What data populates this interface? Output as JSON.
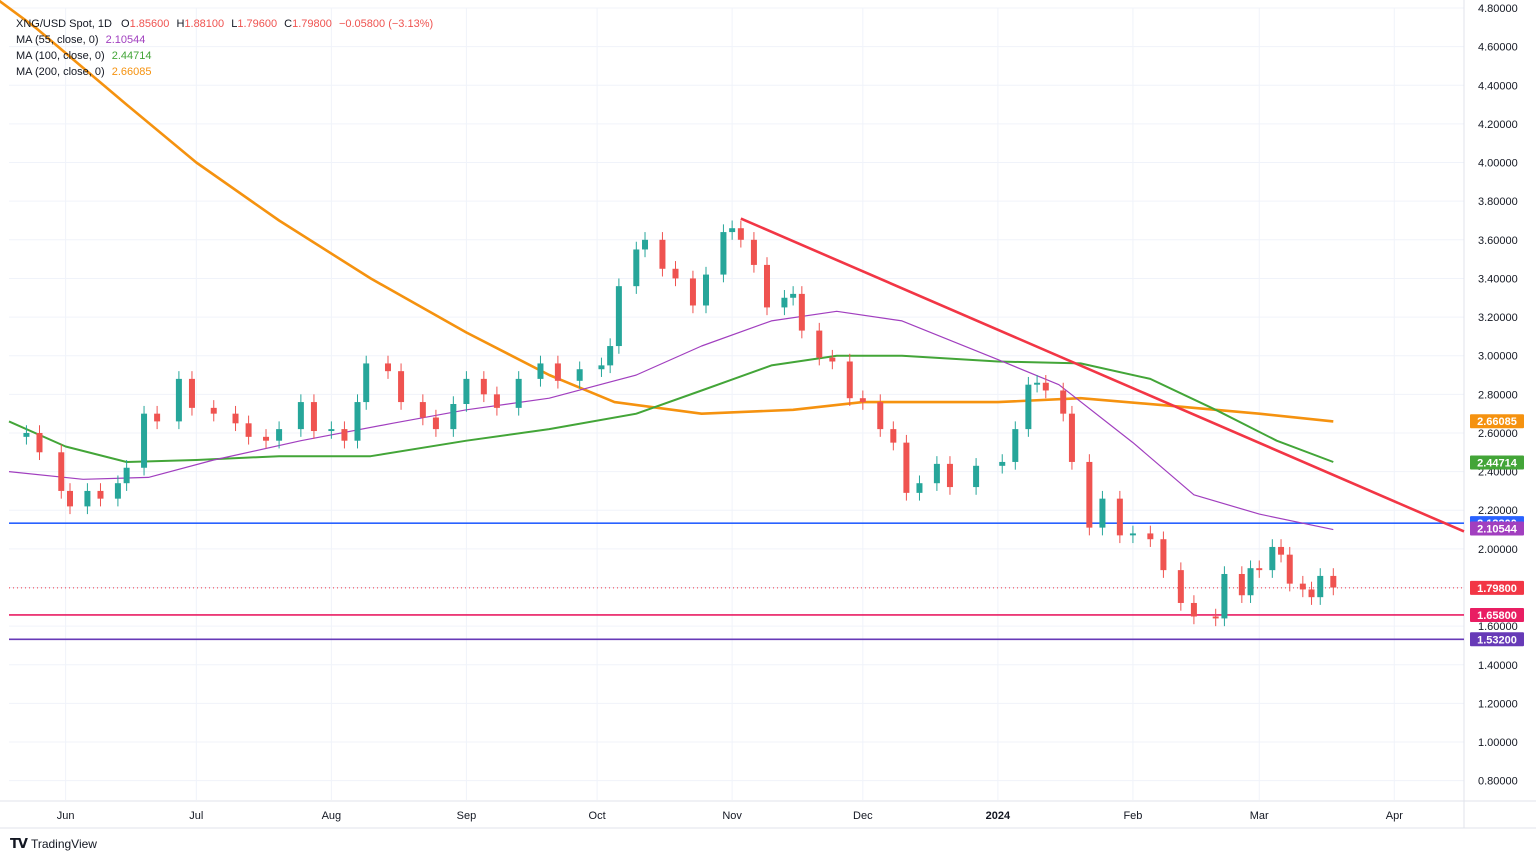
{
  "legend": {
    "symbol": "XNG/USD Spot, 1D",
    "ohlc": {
      "o_label": "O",
      "o": "1.85600",
      "h_label": "H",
      "h": "1.88100",
      "l_label": "L",
      "l": "1.79600",
      "c_label": "C",
      "c": "1.79800",
      "change": "−0.05800 (−3.13%)"
    },
    "ma55": {
      "label": "MA (55, close, 0)",
      "value": "2.10544",
      "color": "#a13fbf"
    },
    "ma100": {
      "label": "MA (100, close, 0)",
      "value": "2.44714",
      "color": "#43a538"
    },
    "ma200": {
      "label": "MA (200, close, 0)",
      "value": "2.66085",
      "color": "#f5920f"
    }
  },
  "brand": {
    "name": "TradingView"
  },
  "colors": {
    "up": "#26a69a",
    "down": "#ef5350",
    "grid": "#f0f3fa",
    "axis_text": "#131722",
    "trendline": "#f23645",
    "support_blue": "#2962ff",
    "support_red": "#e91e63",
    "support_purple": "#673ab7",
    "last_price": "#f23645"
  },
  "chart_data": {
    "type": "candlestick",
    "title": "XNG/USD Spot, 1D",
    "ylim": [
      0.7,
      4.8
    ],
    "y_ticks": [
      "0.80000",
      "1.00000",
      "1.20000",
      "1.40000",
      "1.60000",
      "1.80000",
      "2.00000",
      "2.20000",
      "2.40000",
      "2.60000",
      "2.80000",
      "3.00000",
      "3.20000",
      "3.40000",
      "3.60000",
      "3.80000",
      "4.00000",
      "4.20000",
      "4.40000",
      "4.60000",
      "4.80000"
    ],
    "x_ticks": [
      {
        "label": "Jun",
        "date": "2023-06-01"
      },
      {
        "label": "Jul",
        "date": "2023-07-01"
      },
      {
        "label": "Aug",
        "date": "2023-08-01"
      },
      {
        "label": "Sep",
        "date": "2023-09-01"
      },
      {
        "label": "Oct",
        "date": "2023-10-01"
      },
      {
        "label": "Nov",
        "date": "2023-11-01"
      },
      {
        "label": "Dec",
        "date": "2023-12-01"
      },
      {
        "label": "2024",
        "date": "2024-01-01",
        "bold": true
      },
      {
        "label": "Feb",
        "date": "2024-02-01"
      },
      {
        "label": "Mar",
        "date": "2024-03-01"
      },
      {
        "label": "Apr",
        "date": "2024-04-01"
      }
    ],
    "x_range": [
      "2023-05-19",
      "2024-04-17"
    ],
    "closes": [
      {
        "date": "2023-05-19",
        "close": 2.58
      },
      {
        "date": "2023-05-23",
        "close": 2.6
      },
      {
        "date": "2023-05-26",
        "close": 2.5
      },
      {
        "date": "2023-05-31",
        "close": 2.3
      },
      {
        "date": "2023-06-02",
        "close": 2.22
      },
      {
        "date": "2023-06-06",
        "close": 2.3
      },
      {
        "date": "2023-06-09",
        "close": 2.26
      },
      {
        "date": "2023-06-13",
        "close": 2.34
      },
      {
        "date": "2023-06-15",
        "close": 2.42
      },
      {
        "date": "2023-06-19",
        "close": 2.7
      },
      {
        "date": "2023-06-22",
        "close": 2.66
      },
      {
        "date": "2023-06-27",
        "close": 2.88
      },
      {
        "date": "2023-06-30",
        "close": 2.73
      },
      {
        "date": "2023-07-05",
        "close": 2.7
      },
      {
        "date": "2023-07-10",
        "close": 2.65
      },
      {
        "date": "2023-07-13",
        "close": 2.58
      },
      {
        "date": "2023-07-17",
        "close": 2.56
      },
      {
        "date": "2023-07-20",
        "close": 2.62
      },
      {
        "date": "2023-07-25",
        "close": 2.76
      },
      {
        "date": "2023-07-28",
        "close": 2.61
      },
      {
        "date": "2023-08-01",
        "close": 2.62
      },
      {
        "date": "2023-08-04",
        "close": 2.56
      },
      {
        "date": "2023-08-07",
        "close": 2.76
      },
      {
        "date": "2023-08-09",
        "close": 2.96
      },
      {
        "date": "2023-08-14",
        "close": 2.92
      },
      {
        "date": "2023-08-17",
        "close": 2.76
      },
      {
        "date": "2023-08-22",
        "close": 2.68
      },
      {
        "date": "2023-08-25",
        "close": 2.62
      },
      {
        "date": "2023-08-29",
        "close": 2.75
      },
      {
        "date": "2023-09-01",
        "close": 2.88
      },
      {
        "date": "2023-09-05",
        "close": 2.8
      },
      {
        "date": "2023-09-08",
        "close": 2.73
      },
      {
        "date": "2023-09-13",
        "close": 2.88
      },
      {
        "date": "2023-09-18",
        "close": 2.96
      },
      {
        "date": "2023-09-22",
        "close": 2.87
      },
      {
        "date": "2023-09-27",
        "close": 2.93
      },
      {
        "date": "2023-10-02",
        "close": 2.95
      },
      {
        "date": "2023-10-04",
        "close": 3.05
      },
      {
        "date": "2023-10-06",
        "close": 3.36
      },
      {
        "date": "2023-10-10",
        "close": 3.55
      },
      {
        "date": "2023-10-12",
        "close": 3.6
      },
      {
        "date": "2023-10-16",
        "close": 3.45
      },
      {
        "date": "2023-10-19",
        "close": 3.4
      },
      {
        "date": "2023-10-23",
        "close": 3.26
      },
      {
        "date": "2023-10-26",
        "close": 3.42
      },
      {
        "date": "2023-10-30",
        "close": 3.64
      },
      {
        "date": "2023-11-01",
        "close": 3.66
      },
      {
        "date": "2023-11-03",
        "close": 3.6
      },
      {
        "date": "2023-11-06",
        "close": 3.47
      },
      {
        "date": "2023-11-09",
        "close": 3.25
      },
      {
        "date": "2023-11-13",
        "close": 3.3
      },
      {
        "date": "2023-11-15",
        "close": 3.32
      },
      {
        "date": "2023-11-17",
        "close": 3.13
      },
      {
        "date": "2023-11-21",
        "close": 2.99
      },
      {
        "date": "2023-11-24",
        "close": 2.97
      },
      {
        "date": "2023-11-28",
        "close": 2.78
      },
      {
        "date": "2023-12-01",
        "close": 2.76
      },
      {
        "date": "2023-12-05",
        "close": 2.62
      },
      {
        "date": "2023-12-08",
        "close": 2.55
      },
      {
        "date": "2023-12-11",
        "close": 2.29
      },
      {
        "date": "2023-12-14",
        "close": 2.34
      },
      {
        "date": "2023-12-18",
        "close": 2.44
      },
      {
        "date": "2023-12-21",
        "close": 2.32
      },
      {
        "date": "2023-12-27",
        "close": 2.43
      },
      {
        "date": "2024-01-02",
        "close": 2.45
      },
      {
        "date": "2024-01-05",
        "close": 2.62
      },
      {
        "date": "2024-01-08",
        "close": 2.85
      },
      {
        "date": "2024-01-10",
        "close": 2.86
      },
      {
        "date": "2024-01-12",
        "close": 2.82
      },
      {
        "date": "2024-01-16",
        "close": 2.7
      },
      {
        "date": "2024-01-18",
        "close": 2.45
      },
      {
        "date": "2024-01-22",
        "close": 2.11
      },
      {
        "date": "2024-01-25",
        "close": 2.26
      },
      {
        "date": "2024-01-29",
        "close": 2.07
      },
      {
        "date": "2024-02-01",
        "close": 2.08
      },
      {
        "date": "2024-02-05",
        "close": 2.05
      },
      {
        "date": "2024-02-08",
        "close": 1.89
      },
      {
        "date": "2024-02-12",
        "close": 1.72
      },
      {
        "date": "2024-02-15",
        "close": 1.65
      },
      {
        "date": "2024-02-20",
        "close": 1.64
      },
      {
        "date": "2024-02-22",
        "close": 1.87
      },
      {
        "date": "2024-02-26",
        "close": 1.76
      },
      {
        "date": "2024-02-28",
        "close": 1.9
      },
      {
        "date": "2024-03-01",
        "close": 1.89
      },
      {
        "date": "2024-03-04",
        "close": 2.01
      },
      {
        "date": "2024-03-06",
        "close": 1.97
      },
      {
        "date": "2024-03-08",
        "close": 1.82
      },
      {
        "date": "2024-03-11",
        "close": 1.79
      },
      {
        "date": "2024-03-13",
        "close": 1.75
      },
      {
        "date": "2024-03-15",
        "close": 1.86
      },
      {
        "date": "2024-03-18",
        "close": 1.8
      }
    ],
    "moving_averages": [
      {
        "name": "MA (200, close, 0)",
        "color": "#f5920f",
        "points": [
          {
            "date": "2023-05-10",
            "value": 4.95
          },
          {
            "date": "2023-05-25",
            "value": 4.7
          },
          {
            "date": "2023-06-15",
            "value": 4.3
          },
          {
            "date": "2023-07-01",
            "value": 4.0
          },
          {
            "date": "2023-07-20",
            "value": 3.7
          },
          {
            "date": "2023-08-10",
            "value": 3.4
          },
          {
            "date": "2023-09-01",
            "value": 3.12
          },
          {
            "date": "2023-09-20",
            "value": 2.9
          },
          {
            "date": "2023-10-05",
            "value": 2.76
          },
          {
            "date": "2023-10-25",
            "value": 2.7
          },
          {
            "date": "2023-11-15",
            "value": 2.72
          },
          {
            "date": "2023-12-01",
            "value": 2.76
          },
          {
            "date": "2024-01-01",
            "value": 2.76
          },
          {
            "date": "2024-01-20",
            "value": 2.78
          },
          {
            "date": "2024-02-10",
            "value": 2.74
          },
          {
            "date": "2024-03-01",
            "value": 2.7
          },
          {
            "date": "2024-03-18",
            "value": 2.66
          }
        ]
      },
      {
        "name": "MA (100, close, 0)",
        "color": "#43a538",
        "points": [
          {
            "date": "2023-05-19",
            "value": 2.66
          },
          {
            "date": "2023-06-01",
            "value": 2.53
          },
          {
            "date": "2023-06-15",
            "value": 2.45
          },
          {
            "date": "2023-07-01",
            "value": 2.46
          },
          {
            "date": "2023-07-20",
            "value": 2.48
          },
          {
            "date": "2023-08-10",
            "value": 2.48
          },
          {
            "date": "2023-09-01",
            "value": 2.56
          },
          {
            "date": "2023-09-20",
            "value": 2.62
          },
          {
            "date": "2023-10-10",
            "value": 2.7
          },
          {
            "date": "2023-10-25",
            "value": 2.82
          },
          {
            "date": "2023-11-10",
            "value": 2.95
          },
          {
            "date": "2023-11-25",
            "value": 3.0
          },
          {
            "date": "2023-12-10",
            "value": 3.0
          },
          {
            "date": "2024-01-01",
            "value": 2.97
          },
          {
            "date": "2024-01-20",
            "value": 2.96
          },
          {
            "date": "2024-02-05",
            "value": 2.88
          },
          {
            "date": "2024-02-20",
            "value": 2.72
          },
          {
            "date": "2024-03-05",
            "value": 2.56
          },
          {
            "date": "2024-03-18",
            "value": 2.45
          }
        ]
      },
      {
        "name": "MA (55, close, 0)",
        "color": "#a13fbf",
        "points": [
          {
            "date": "2023-05-19",
            "value": 2.4
          },
          {
            "date": "2023-06-05",
            "value": 2.36
          },
          {
            "date": "2023-06-20",
            "value": 2.37
          },
          {
            "date": "2023-07-05",
            "value": 2.46
          },
          {
            "date": "2023-07-25",
            "value": 2.56
          },
          {
            "date": "2023-08-15",
            "value": 2.65
          },
          {
            "date": "2023-09-01",
            "value": 2.72
          },
          {
            "date": "2023-09-20",
            "value": 2.78
          },
          {
            "date": "2023-10-10",
            "value": 2.9
          },
          {
            "date": "2023-10-25",
            "value": 3.05
          },
          {
            "date": "2023-11-10",
            "value": 3.18
          },
          {
            "date": "2023-11-25",
            "value": 3.23
          },
          {
            "date": "2023-12-10",
            "value": 3.18
          },
          {
            "date": "2024-01-01",
            "value": 2.98
          },
          {
            "date": "2024-01-15",
            "value": 2.85
          },
          {
            "date": "2024-02-01",
            "value": 2.55
          },
          {
            "date": "2024-02-15",
            "value": 2.28
          },
          {
            "date": "2024-03-01",
            "value": 2.18
          },
          {
            "date": "2024-03-18",
            "value": 2.1
          }
        ]
      }
    ],
    "trendline": {
      "color": "#f23645",
      "points": [
        {
          "date": "2023-11-03",
          "value": 3.71
        },
        {
          "date": "2024-04-17",
          "value": 2.09
        }
      ]
    },
    "horizontal_levels": [
      {
        "value": 2.133,
        "label": "2.13300",
        "color": "#2962ff"
      },
      {
        "value": 1.658,
        "label": "1.65800",
        "color": "#e91e63"
      },
      {
        "value": 1.532,
        "label": "1.53200",
        "color": "#673ab7"
      }
    ],
    "price_labels": [
      {
        "value": 2.66085,
        "label": "2.66085",
        "color": "#f5920f"
      },
      {
        "value": 2.44714,
        "label": "2.44714",
        "color": "#43a538"
      },
      {
        "value": 2.133,
        "label": "2.13300",
        "color": "#2962ff"
      },
      {
        "value": 2.10544,
        "label": "2.10544",
        "color": "#a13fbf"
      },
      {
        "value": 1.798,
        "label": "1.79800",
        "color": "#f23645"
      },
      {
        "value": 1.658,
        "label": "1.65800",
        "color": "#e91e63"
      },
      {
        "value": 1.532,
        "label": "1.53200",
        "color": "#673ab7"
      }
    ],
    "last_price": 1.798,
    "grid": true
  }
}
